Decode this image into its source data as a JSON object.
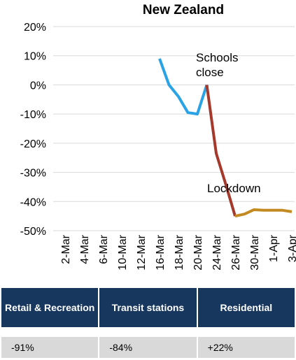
{
  "chart_data": {
    "type": "line",
    "title": "New Zealand",
    "categories": [
      "2-Mar",
      null,
      "4-Mar",
      null,
      "6-Mar",
      null,
      "10-Mar",
      null,
      "12-Mar",
      null,
      "16-Mar",
      null,
      "18-Mar",
      null,
      "20-Mar",
      null,
      "24-Mar",
      null,
      "26-Mar",
      null,
      "30-Mar",
      null,
      "1-Apr",
      null,
      "3-Apr"
    ],
    "series": [
      {
        "color": "#2aa3e6",
        "values": [
          null,
          null,
          null,
          null,
          null,
          null,
          null,
          null,
          null,
          null,
          9,
          0,
          -4,
          -9.5,
          -10,
          0,
          null,
          null,
          null,
          null,
          null,
          null,
          null,
          null,
          null
        ]
      },
      {
        "color": "#a5392b",
        "values": [
          null,
          null,
          null,
          null,
          null,
          null,
          null,
          null,
          null,
          null,
          null,
          null,
          null,
          null,
          null,
          0,
          -23.5,
          -34,
          -45,
          null,
          null,
          null,
          null,
          null,
          null
        ]
      },
      {
        "color": "#c48a22",
        "values": [
          null,
          null,
          null,
          null,
          null,
          null,
          null,
          null,
          null,
          null,
          null,
          null,
          null,
          null,
          null,
          null,
          null,
          null,
          -45,
          -44.3,
          -42.8,
          -43,
          -43,
          -43,
          -43.5
        ]
      }
    ],
    "ylim": [
      -50,
      20
    ],
    "yticks": [
      {
        "value": -50,
        "label": "-50%"
      },
      {
        "value": -40,
        "label": "-40%"
      },
      {
        "value": -30,
        "label": "-30%"
      },
      {
        "value": -20,
        "label": "-20%"
      },
      {
        "value": -10,
        "label": "-10%"
      },
      {
        "value": 0,
        "label": "0%"
      },
      {
        "value": 10,
        "label": "10%"
      },
      {
        "value": 20,
        "label": "20%"
      }
    ],
    "grid": true,
    "annotations": [
      "Schools close",
      "Lockdown"
    ]
  },
  "table": {
    "columns": [
      "Retail & Recreation",
      "Transit stations",
      "Residential"
    ],
    "rows": [
      [
        "-91%",
        "-84%",
        "+22%"
      ]
    ]
  }
}
